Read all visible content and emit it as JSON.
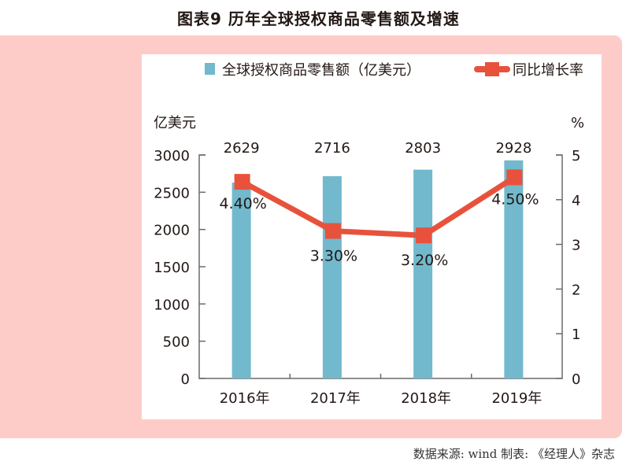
{
  "title": "图表9  历年全球授权商品零售额及增速",
  "source": "数据来源: wind   制表: 《经理人》杂志",
  "chart_data": {
    "type": "bar+line",
    "categories": [
      "2016年",
      "2017年",
      "2018年",
      "2019年"
    ],
    "series": [
      {
        "name": "全球授权商品零售额（亿美元）",
        "type": "bar",
        "axis": "left",
        "values": [
          2629,
          2716,
          2803,
          2928
        ],
        "labels": [
          "2629",
          "2716",
          "2803",
          "2928"
        ],
        "color": "#72b9cd"
      },
      {
        "name": "同比增长率",
        "type": "line",
        "axis": "right",
        "values": [
          4.4,
          3.3,
          3.2,
          4.5
        ],
        "labels": [
          "4.40%",
          "3.30%",
          "3.20%",
          "4.50%"
        ],
        "color": "#e8523c"
      }
    ],
    "left_axis": {
      "label": "亿美元",
      "ylim": [
        0,
        3000
      ],
      "ticks": [
        "0",
        "500",
        "1000",
        "1500",
        "2000",
        "2500",
        "3000"
      ]
    },
    "right_axis": {
      "label": "%",
      "ylim": [
        0,
        5
      ],
      "ticks": [
        "0",
        "1",
        "2",
        "3",
        "4",
        "5"
      ]
    },
    "legend": "top",
    "grid": false
  }
}
